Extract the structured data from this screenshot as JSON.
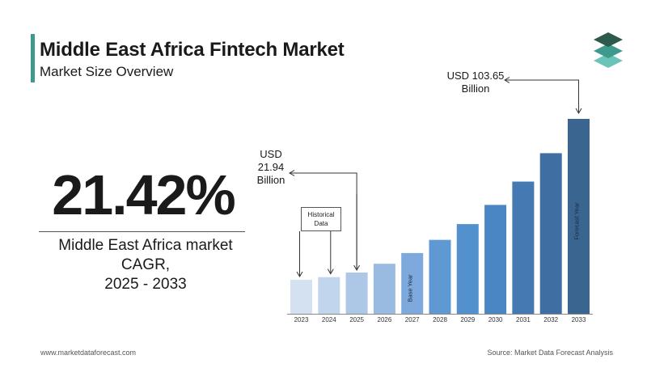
{
  "header": {
    "title": "Middle East Africa Fintech Market",
    "subtitle": "Market Size Overview"
  },
  "cagr": {
    "value": "21.42%",
    "line1": "Middle East Africa market",
    "line2": "CAGR,",
    "line3": "2025 - 2033"
  },
  "callouts": {
    "start": {
      "line1": "USD",
      "line2": "21.94",
      "line3": "Billion"
    },
    "end": {
      "line1": "USD 103.65",
      "line2": "Billion"
    },
    "historical": {
      "line1": "Historical",
      "line2": "Data"
    }
  },
  "footer": {
    "website": "www.marketdataforecast.com",
    "source": "Source: Market Data Forecast Analysis"
  },
  "colors": {
    "accent": "#3d9a8c",
    "logo_top": "#2e5a4d",
    "logo_mid": "#3d9a8c",
    "logo_bottom": "#6cc4b8"
  },
  "chart_data": {
    "type": "bar",
    "categories": [
      "2023",
      "2024",
      "2025",
      "2026",
      "2027",
      "2028",
      "2029",
      "2030",
      "2031",
      "2032",
      "2033"
    ],
    "values": [
      18.08,
      19.5,
      21.94,
      26.6,
      32.3,
      39.3,
      47.7,
      57.9,
      70.3,
      85.4,
      103.65
    ],
    "bar_colors": [
      "#d3e1f1",
      "#c1d5ec",
      "#adc8e7",
      "#99bbe2",
      "#7ea9dc",
      "#5f99d4",
      "#5291cd",
      "#4a86c1",
      "#4479b1",
      "#3e6ea2",
      "#3a6590"
    ],
    "bar_labels": {
      "2027": "Base Year",
      "2033": "Forecast Year"
    },
    "ylim": [
      0,
      110
    ],
    "grid": false,
    "legend": "none"
  }
}
